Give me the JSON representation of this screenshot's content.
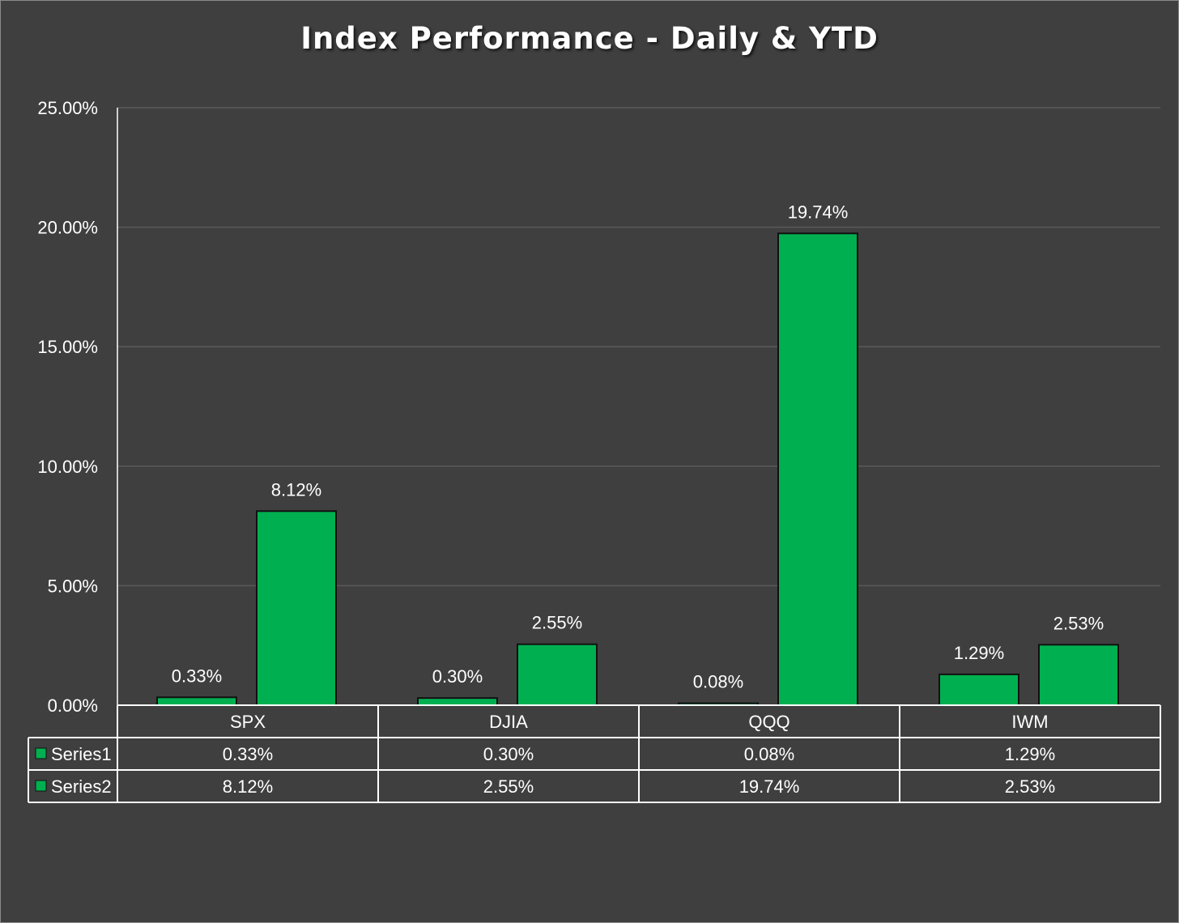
{
  "chart_data": {
    "type": "bar",
    "title": "Index Performance - Daily & YTD",
    "categories": [
      "SPX",
      "DJIA",
      "QQQ",
      "IWM"
    ],
    "series": [
      {
        "name": "Series1",
        "values": [
          0.33,
          0.3,
          0.08,
          1.29
        ],
        "labels": [
          "0.33%",
          "0.30%",
          "0.08%",
          "1.29%"
        ],
        "color": "#00b050"
      },
      {
        "name": "Series2",
        "values": [
          8.12,
          2.55,
          19.74,
          2.53
        ],
        "labels": [
          "8.12%",
          "2.55%",
          "19.74%",
          "2.53%"
        ],
        "color": "#00b050"
      }
    ],
    "ylim": [
      0,
      25
    ],
    "yticks": [
      0,
      5,
      10,
      15,
      20,
      25
    ],
    "ytick_labels": [
      "0.00%",
      "5.00%",
      "10.00%",
      "15.00%",
      "20.00%",
      "25.00%"
    ],
    "grid": true,
    "legend": "data-table",
    "colors": {
      "background": "#3f3f3f",
      "bar": "#00b050",
      "grid": "#5a5a5a",
      "text": "#ffffff"
    }
  }
}
